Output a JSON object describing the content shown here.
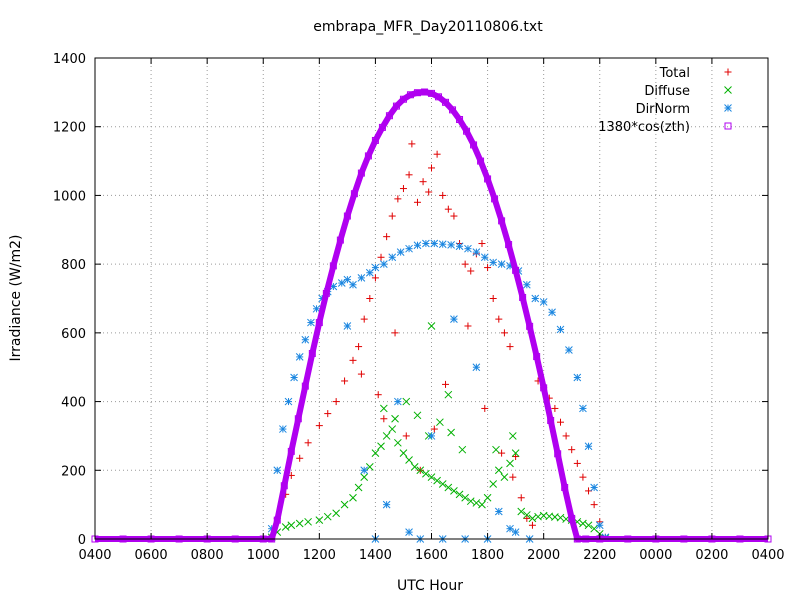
{
  "chart_data": {
    "type": "scatter",
    "title": "embrapa_MFR_Day20110806.txt",
    "xlabel": "UTC Hour",
    "ylabel": "Irradiance (W/m2)",
    "x_ticks": [
      "0400",
      "0600",
      "0800",
      "1000",
      "1200",
      "1400",
      "1600",
      "1800",
      "2000",
      "2200",
      "0000",
      "0200",
      "0400"
    ],
    "x_tick_hours": [
      4,
      6,
      8,
      10,
      12,
      14,
      16,
      18,
      20,
      22,
      24,
      26,
      28
    ],
    "xlim": [
      4,
      28
    ],
    "ylim": [
      0,
      1400
    ],
    "y_ticks": [
      0,
      200,
      400,
      600,
      800,
      1000,
      1200,
      1400
    ],
    "grid": true,
    "legend_position": "top-right",
    "series": [
      {
        "name": "Total",
        "marker": "plus",
        "color": "#e00000",
        "points": [
          [
            10.3,
            5
          ],
          [
            10.5,
            60
          ],
          [
            10.8,
            130
          ],
          [
            11.0,
            185
          ],
          [
            11.3,
            235
          ],
          [
            11.6,
            280
          ],
          [
            12.0,
            330
          ],
          [
            12.3,
            365
          ],
          [
            12.6,
            400
          ],
          [
            12.9,
            460
          ],
          [
            13.2,
            520
          ],
          [
            13.4,
            560
          ],
          [
            13.6,
            640
          ],
          [
            13.8,
            700
          ],
          [
            14.0,
            760
          ],
          [
            14.2,
            820
          ],
          [
            14.4,
            880
          ],
          [
            14.6,
            940
          ],
          [
            14.8,
            990
          ],
          [
            15.0,
            1020
          ],
          [
            15.2,
            1060
          ],
          [
            15.3,
            1150
          ],
          [
            15.5,
            980
          ],
          [
            15.7,
            1040
          ],
          [
            15.9,
            1010
          ],
          [
            16.0,
            1080
          ],
          [
            16.2,
            1120
          ],
          [
            16.4,
            1000
          ],
          [
            16.6,
            960
          ],
          [
            16.8,
            940
          ],
          [
            17.0,
            860
          ],
          [
            17.2,
            800
          ],
          [
            17.4,
            780
          ],
          [
            17.6,
            830
          ],
          [
            17.8,
            860
          ],
          [
            18.0,
            790
          ],
          [
            18.2,
            700
          ],
          [
            18.4,
            640
          ],
          [
            18.6,
            600
          ],
          [
            18.8,
            560
          ],
          [
            19.0,
            240
          ],
          [
            19.2,
            120
          ],
          [
            19.4,
            60
          ],
          [
            19.6,
            40
          ],
          [
            19.8,
            460
          ],
          [
            20.0,
            440
          ],
          [
            20.2,
            410
          ],
          [
            20.4,
            380
          ],
          [
            20.6,
            340
          ],
          [
            20.8,
            300
          ],
          [
            21.0,
            260
          ],
          [
            21.2,
            220
          ],
          [
            21.4,
            180
          ],
          [
            21.6,
            140
          ],
          [
            21.8,
            100
          ],
          [
            22.0,
            50
          ],
          [
            22.2,
            5
          ],
          [
            13.5,
            480
          ],
          [
            14.1,
            420
          ],
          [
            14.3,
            350
          ],
          [
            14.7,
            600
          ],
          [
            15.1,
            300
          ],
          [
            15.6,
            200
          ],
          [
            16.1,
            320
          ],
          [
            16.5,
            450
          ],
          [
            17.3,
            620
          ],
          [
            17.9,
            380
          ],
          [
            18.5,
            250
          ],
          [
            18.9,
            180
          ]
        ]
      },
      {
        "name": "Diffuse",
        "marker": "cross",
        "color": "#00b000",
        "points": [
          [
            10.3,
            5
          ],
          [
            10.5,
            20
          ],
          [
            10.8,
            35
          ],
          [
            11.0,
            40
          ],
          [
            11.3,
            45
          ],
          [
            11.6,
            50
          ],
          [
            12.0,
            55
          ],
          [
            12.3,
            65
          ],
          [
            12.6,
            75
          ],
          [
            12.9,
            100
          ],
          [
            13.2,
            120
          ],
          [
            13.4,
            150
          ],
          [
            13.6,
            180
          ],
          [
            13.8,
            210
          ],
          [
            14.0,
            250
          ],
          [
            14.2,
            270
          ],
          [
            14.4,
            300
          ],
          [
            14.6,
            320
          ],
          [
            14.8,
            280
          ],
          [
            15.0,
            250
          ],
          [
            15.2,
            230
          ],
          [
            15.4,
            210
          ],
          [
            15.6,
            200
          ],
          [
            15.8,
            190
          ],
          [
            16.0,
            180
          ],
          [
            16.2,
            170
          ],
          [
            16.4,
            160
          ],
          [
            16.6,
            150
          ],
          [
            16.8,
            140
          ],
          [
            17.0,
            130
          ],
          [
            17.2,
            120
          ],
          [
            17.4,
            110
          ],
          [
            17.6,
            105
          ],
          [
            17.8,
            100
          ],
          [
            18.0,
            120
          ],
          [
            18.2,
            160
          ],
          [
            18.4,
            200
          ],
          [
            18.6,
            180
          ],
          [
            18.8,
            220
          ],
          [
            19.0,
            250
          ],
          [
            19.2,
            80
          ],
          [
            19.4,
            70
          ],
          [
            19.6,
            60
          ],
          [
            19.8,
            65
          ],
          [
            20.0,
            68
          ],
          [
            20.2,
            66
          ],
          [
            20.4,
            64
          ],
          [
            20.6,
            62
          ],
          [
            20.8,
            58
          ],
          [
            21.0,
            55
          ],
          [
            21.2,
            50
          ],
          [
            21.4,
            45
          ],
          [
            21.6,
            40
          ],
          [
            21.8,
            30
          ],
          [
            22.0,
            15
          ],
          [
            22.2,
            3
          ],
          [
            14.3,
            380
          ],
          [
            14.7,
            350
          ],
          [
            15.1,
            400
          ],
          [
            15.5,
            360
          ],
          [
            15.9,
            300
          ],
          [
            16.3,
            340
          ],
          [
            16.7,
            310
          ],
          [
            17.1,
            260
          ],
          [
            18.3,
            260
          ],
          [
            18.9,
            300
          ],
          [
            16.0,
            620
          ],
          [
            16.6,
            420
          ]
        ]
      },
      {
        "name": "DirNorm",
        "marker": "star",
        "color": "#1a86e0",
        "points": [
          [
            10.3,
            30
          ],
          [
            10.5,
            200
          ],
          [
            10.7,
            320
          ],
          [
            10.9,
            400
          ],
          [
            11.1,
            470
          ],
          [
            11.3,
            530
          ],
          [
            11.5,
            580
          ],
          [
            11.7,
            630
          ],
          [
            11.9,
            670
          ],
          [
            12.1,
            700
          ],
          [
            12.3,
            720
          ],
          [
            12.5,
            735
          ],
          [
            12.8,
            745
          ],
          [
            13.0,
            755
          ],
          [
            13.2,
            740
          ],
          [
            13.5,
            760
          ],
          [
            13.8,
            775
          ],
          [
            14.0,
            790
          ],
          [
            14.3,
            800
          ],
          [
            14.6,
            820
          ],
          [
            14.9,
            835
          ],
          [
            15.2,
            845
          ],
          [
            15.5,
            855
          ],
          [
            15.8,
            860
          ],
          [
            16.1,
            860
          ],
          [
            16.4,
            858
          ],
          [
            16.7,
            856
          ],
          [
            17.0,
            852
          ],
          [
            17.3,
            845
          ],
          [
            17.6,
            835
          ],
          [
            17.9,
            820
          ],
          [
            18.2,
            805
          ],
          [
            18.5,
            800
          ],
          [
            18.8,
            795
          ],
          [
            19.1,
            780
          ],
          [
            19.4,
            740
          ],
          [
            19.7,
            700
          ],
          [
            20.0,
            690
          ],
          [
            20.3,
            660
          ],
          [
            20.6,
            610
          ],
          [
            20.9,
            550
          ],
          [
            21.2,
            470
          ],
          [
            21.4,
            380
          ],
          [
            21.6,
            270
          ],
          [
            21.8,
            150
          ],
          [
            22.0,
            40
          ],
          [
            22.2,
            5
          ],
          [
            13.0,
            620
          ],
          [
            13.6,
            200
          ],
          [
            14.0,
            0
          ],
          [
            14.4,
            100
          ],
          [
            14.8,
            400
          ],
          [
            15.2,
            20
          ],
          [
            15.6,
            0
          ],
          [
            16.0,
            300
          ],
          [
            16.4,
            0
          ],
          [
            16.8,
            640
          ],
          [
            17.2,
            0
          ],
          [
            17.6,
            500
          ],
          [
            18.0,
            0
          ],
          [
            18.4,
            80
          ],
          [
            18.8,
            30
          ],
          [
            19.0,
            20
          ],
          [
            19.5,
            0
          ]
        ]
      },
      {
        "name": "1380*cos(zth)",
        "marker": "square",
        "color": "#b000f0",
        "points": [
          [
            4,
            0
          ],
          [
            5,
            0
          ],
          [
            6,
            0
          ],
          [
            7,
            0
          ],
          [
            8,
            0
          ],
          [
            9,
            0
          ],
          [
            10,
            0
          ],
          [
            10.3,
            0
          ],
          [
            10.5,
            55
          ],
          [
            10.75,
            155
          ],
          [
            11.0,
            255
          ],
          [
            11.25,
            350
          ],
          [
            11.5,
            445
          ],
          [
            11.75,
            540
          ],
          [
            12.0,
            630
          ],
          [
            12.25,
            715
          ],
          [
            12.5,
            795
          ],
          [
            12.75,
            870
          ],
          [
            13.0,
            940
          ],
          [
            13.25,
            1005
          ],
          [
            13.5,
            1065
          ],
          [
            13.75,
            1115
          ],
          [
            14.0,
            1160
          ],
          [
            14.25,
            1198
          ],
          [
            14.5,
            1232
          ],
          [
            14.75,
            1260
          ],
          [
            15.0,
            1280
          ],
          [
            15.25,
            1293
          ],
          [
            15.5,
            1299
          ],
          [
            15.75,
            1301
          ],
          [
            16.0,
            1297
          ],
          [
            16.25,
            1287
          ],
          [
            16.5,
            1271
          ],
          [
            16.75,
            1249
          ],
          [
            17.0,
            1221
          ],
          [
            17.25,
            1187
          ],
          [
            17.5,
            1147
          ],
          [
            17.75,
            1100
          ],
          [
            18.0,
            1048
          ],
          [
            18.25,
            990
          ],
          [
            18.5,
            926
          ],
          [
            18.75,
            857
          ],
          [
            19.0,
            782
          ],
          [
            19.25,
            703
          ],
          [
            19.5,
            619
          ],
          [
            19.75,
            531
          ],
          [
            20.0,
            440
          ],
          [
            20.25,
            345
          ],
          [
            20.5,
            248
          ],
          [
            20.75,
            150
          ],
          [
            21.0,
            60
          ],
          [
            21.2,
            0
          ],
          [
            21.5,
            0
          ],
          [
            22.0,
            0
          ],
          [
            23,
            0
          ],
          [
            24,
            0
          ],
          [
            25,
            0
          ],
          [
            26,
            0
          ],
          [
            27,
            0
          ],
          [
            28,
            0
          ]
        ]
      }
    ]
  }
}
